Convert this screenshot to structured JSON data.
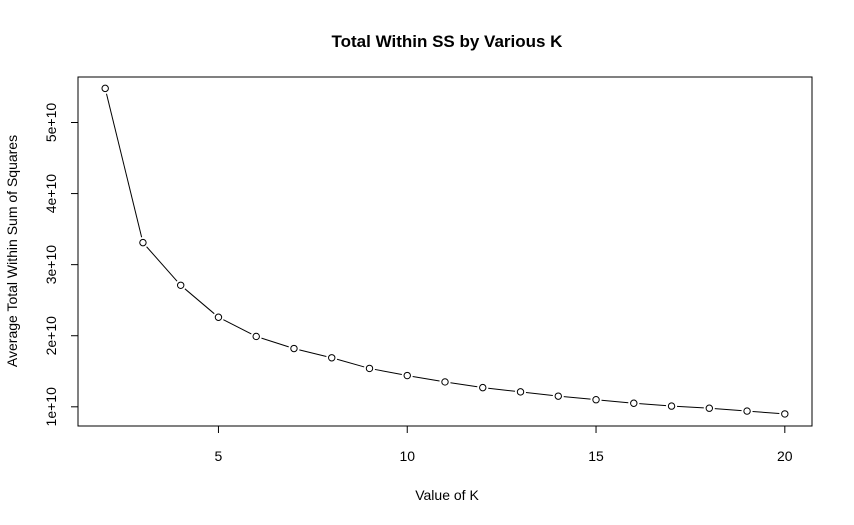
{
  "chart_data": {
    "type": "line",
    "title": "Total Within SS by Various K",
    "xlabel": "Value of K",
    "ylabel": "Average Total Within Sum of Squares",
    "xlim": [
      1.28,
      20.72
    ],
    "ylim": [
      7300000000.0,
      56400000000.0
    ],
    "x_ticks": [
      {
        "value": 5,
        "label": "5"
      },
      {
        "value": 10,
        "label": "10"
      },
      {
        "value": 15,
        "label": "15"
      },
      {
        "value": 20,
        "label": "20"
      }
    ],
    "y_ticks": [
      {
        "value": 10000000000.0,
        "label": "1e+10"
      },
      {
        "value": 20000000000.0,
        "label": "2e+10"
      },
      {
        "value": 30000000000.0,
        "label": "3e+10"
      },
      {
        "value": 40000000000.0,
        "label": "4e+10"
      },
      {
        "value": 50000000000.0,
        "label": "5e+10"
      }
    ],
    "grid": false,
    "markers": "open-circle",
    "series": [
      {
        "x": [
          2,
          3,
          4,
          5,
          6,
          7,
          8,
          9,
          10,
          11,
          12,
          13,
          14,
          15,
          16,
          17,
          18,
          19,
          20
        ],
        "values": [
          54800000000.0,
          33100000000.0,
          27100000000.0,
          22600000000.0,
          19900000000.0,
          18200000000.0,
          16900000000.0,
          15400000000.0,
          14400000000.0,
          13500000000.0,
          12700000000.0,
          12100000000.0,
          11500000000.0,
          11000000000.0,
          10500000000.0,
          10100000000.0,
          9800000000.0,
          9400000000.0,
          9000000000.0
        ]
      }
    ]
  }
}
